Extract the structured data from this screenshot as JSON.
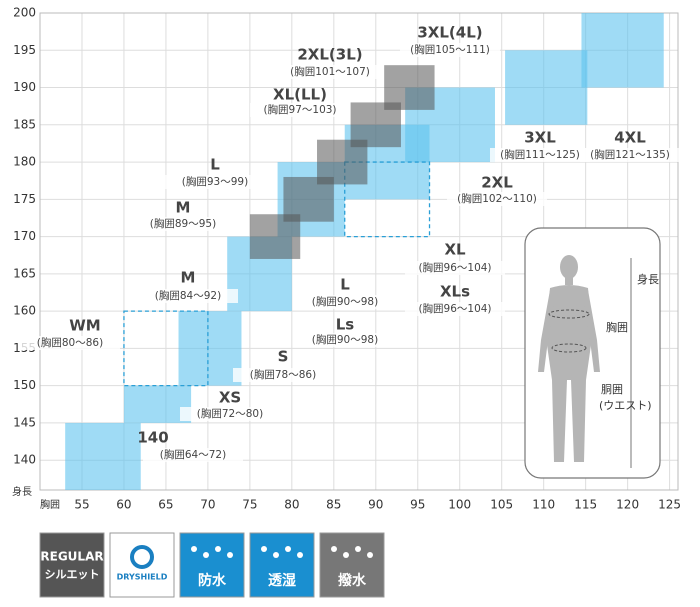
{
  "chart_data": {
    "type": "size-chart",
    "xlabel": "胸囲",
    "ylabel": "身長",
    "xlim": [
      50,
      126
    ],
    "ylim": [
      136,
      200
    ],
    "xticks": [
      55,
      60,
      65,
      70,
      75,
      80,
      85,
      90,
      95,
      100,
      105,
      110,
      115,
      120,
      125
    ],
    "yticks": [
      140,
      145,
      150,
      155,
      160,
      165,
      170,
      175,
      180,
      185,
      190,
      195,
      200
    ],
    "grid": true,
    "boxes": [
      {
        "name": "140",
        "label": "(胸囲64～72)",
        "x": [
          53,
          62
        ],
        "y": [
          136,
          145
        ],
        "style": "blue"
      },
      {
        "name": "XS",
        "label": "(胸囲72～80)",
        "x": [
          60,
          68
        ],
        "y": [
          145,
          150
        ],
        "style": "blue"
      },
      {
        "name": "S",
        "label": "(胸囲78～86)",
        "x": [
          66.5,
          74
        ],
        "y": [
          150,
          160
        ],
        "style": "blue"
      },
      {
        "name": "WM",
        "label": "(胸囲80～86)",
        "x": [
          60,
          70
        ],
        "y": [
          150,
          160
        ],
        "style": "dashed"
      },
      {
        "name": "M",
        "label": "(胸囲84～92)",
        "x": [
          72.3,
          80
        ],
        "y": [
          160,
          170
        ],
        "style": "blue"
      },
      {
        "name": "L",
        "label": "(胸囲90～98)",
        "x": [
          78.3,
          86.3
        ],
        "y": [
          170,
          180
        ],
        "style": "blue"
      },
      {
        "name": "Ls",
        "label": "(胸囲90～98)"
      },
      {
        "name": "XL",
        "label": "(胸囲96～104)",
        "x": [
          86.3,
          96.4
        ],
        "y": [
          175,
          185
        ],
        "style": "blue"
      },
      {
        "name": "XLs",
        "label": "(胸囲96～104)",
        "x": [
          86.3,
          96.4
        ],
        "y": [
          170,
          180
        ],
        "style": "dashed"
      },
      {
        "name": "2XL",
        "label": "(胸囲102～110)",
        "x": [
          93.5,
          104.2
        ],
        "y": [
          180,
          190
        ],
        "style": "blue"
      },
      {
        "name": "3XL",
        "label": "(胸囲111～125)",
        "x": [
          105.4,
          115.2
        ],
        "y": [
          185,
          195
        ],
        "style": "blue"
      },
      {
        "name": "4XL",
        "label": "(胸囲121～135)",
        "x": [
          114.5,
          124.3
        ],
        "y": [
          190,
          200
        ],
        "style": "blue"
      },
      {
        "name": "M",
        "label": "(胸囲89～95)",
        "x": [
          75,
          81
        ],
        "y": [
          167,
          173
        ],
        "style": "gray"
      },
      {
        "name": "L",
        "label": "(胸囲93～99)",
        "x": [
          79,
          85
        ],
        "y": [
          172,
          178
        ],
        "style": "gray"
      },
      {
        "name": "XL(LL)",
        "label": "(胸囲97～103)",
        "x": [
          83,
          89
        ],
        "y": [
          177,
          183
        ],
        "style": "gray"
      },
      {
        "name": "2XL(3L)",
        "label": "(胸囲101～107)",
        "x": [
          87,
          93
        ],
        "y": [
          182,
          188
        ],
        "style": "gray"
      },
      {
        "name": "3XL(4L)",
        "label": "(胸囲105～111)",
        "x": [
          91,
          97
        ],
        "y": [
          187,
          193
        ],
        "style": "gray"
      }
    ]
  },
  "figure": {
    "height": "身長",
    "chest": "胸囲",
    "waist": "胴囲",
    "waist_note": "(ウエスト)"
  },
  "icons": [
    {
      "line1": "REGULAR",
      "line2": "シルエット"
    },
    {
      "line1": "DRYSHIELD"
    },
    {
      "line1": "防水"
    },
    {
      "line1": "透湿"
    },
    {
      "line1": "撥水"
    }
  ]
}
